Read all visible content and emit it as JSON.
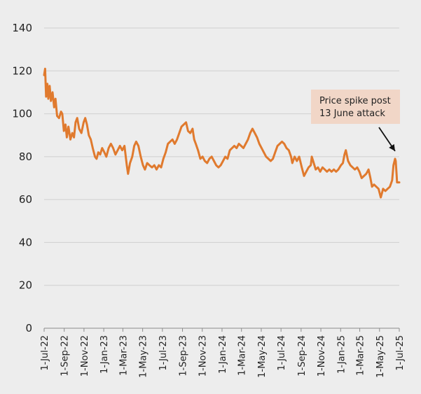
{
  "chart_data": {
    "type": "line",
    "title": "",
    "xlabel": "",
    "ylabel": "",
    "ylim": [
      0,
      140
    ],
    "y_ticks": [
      0,
      20,
      40,
      60,
      80,
      100,
      120,
      140
    ],
    "x_range": [
      "2022-07-01",
      "2025-07-01"
    ],
    "x_tick_labels": [
      "1-Jul-22",
      "1-Sep-22",
      "1-Nov-22",
      "1-Jan-23",
      "1-Mar-23",
      "1-May-23",
      "1-Jul-23",
      "1-Sep-23",
      "1-Nov-23",
      "1-Jan-24",
      "1-Mar-24",
      "1-May-24",
      "1-Jul-24",
      "1-Sep-24",
      "1-Nov-24",
      "1-Jan-25",
      "1-Mar-25",
      "1-May-25",
      "1-Jul-25"
    ],
    "x_tick_dates": [
      "2022-07-01",
      "2022-09-01",
      "2022-11-01",
      "2023-01-01",
      "2023-03-01",
      "2023-05-01",
      "2023-07-01",
      "2023-09-01",
      "2023-11-01",
      "2024-01-01",
      "2024-03-01",
      "2024-05-01",
      "2024-07-01",
      "2024-09-01",
      "2024-11-01",
      "2025-01-01",
      "2025-03-01",
      "2025-05-01",
      "2025-07-01"
    ],
    "grid": "horizontal",
    "line_color": "#e07a2e",
    "series": [
      {
        "name": "",
        "points": [
          [
            "2022-07-01",
            118
          ],
          [
            "2022-07-04",
            121
          ],
          [
            "2022-07-07",
            108
          ],
          [
            "2022-07-11",
            114
          ],
          [
            "2022-07-14",
            107
          ],
          [
            "2022-07-18",
            113
          ],
          [
            "2022-07-22",
            106
          ],
          [
            "2022-07-27",
            110
          ],
          [
            "2022-08-01",
            103
          ],
          [
            "2022-08-05",
            107
          ],
          [
            "2022-08-10",
            99
          ],
          [
            "2022-08-16",
            98
          ],
          [
            "2022-08-22",
            101
          ],
          [
            "2022-08-26",
            100
          ],
          [
            "2022-08-31",
            92
          ],
          [
            "2022-09-05",
            95
          ],
          [
            "2022-09-09",
            89
          ],
          [
            "2022-09-14",
            94
          ],
          [
            "2022-09-20",
            88
          ],
          [
            "2022-09-26",
            91
          ],
          [
            "2022-10-01",
            89
          ],
          [
            "2022-10-06",
            96
          ],
          [
            "2022-10-11",
            98
          ],
          [
            "2022-10-17",
            93
          ],
          [
            "2022-10-24",
            91
          ],
          [
            "2022-10-31",
            96
          ],
          [
            "2022-11-05",
            98
          ],
          [
            "2022-11-10",
            95
          ],
          [
            "2022-11-16",
            90
          ],
          [
            "2022-11-22",
            88
          ],
          [
            "2022-11-28",
            84
          ],
          [
            "2022-12-05",
            80
          ],
          [
            "2022-12-10",
            79
          ],
          [
            "2022-12-15",
            82
          ],
          [
            "2022-12-21",
            81
          ],
          [
            "2022-12-27",
            84
          ],
          [
            "2023-01-03",
            82
          ],
          [
            "2023-01-09",
            80
          ],
          [
            "2023-01-16",
            84
          ],
          [
            "2023-01-23",
            86
          ],
          [
            "2023-01-30",
            84
          ],
          [
            "2023-02-06",
            81
          ],
          [
            "2023-02-13",
            83
          ],
          [
            "2023-02-20",
            85
          ],
          [
            "2023-02-27",
            83
          ],
          [
            "2023-03-06",
            85
          ],
          [
            "2023-03-13",
            76
          ],
          [
            "2023-03-17",
            72
          ],
          [
            "2023-03-23",
            77
          ],
          [
            "2023-03-30",
            80
          ],
          [
            "2023-04-05",
            85
          ],
          [
            "2023-04-11",
            87
          ],
          [
            "2023-04-18",
            85
          ],
          [
            "2023-04-25",
            80
          ],
          [
            "2023-05-02",
            76
          ],
          [
            "2023-05-08",
            74
          ],
          [
            "2023-05-15",
            77
          ],
          [
            "2023-05-22",
            76
          ],
          [
            "2023-05-30",
            75
          ],
          [
            "2023-06-06",
            76
          ],
          [
            "2023-06-13",
            74
          ],
          [
            "2023-06-20",
            76
          ],
          [
            "2023-06-27",
            75
          ],
          [
            "2023-07-04",
            79
          ],
          [
            "2023-07-11",
            82
          ],
          [
            "2023-07-18",
            86
          ],
          [
            "2023-07-25",
            87
          ],
          [
            "2023-08-01",
            88
          ],
          [
            "2023-08-08",
            86
          ],
          [
            "2023-08-15",
            88
          ],
          [
            "2023-08-22",
            91
          ],
          [
            "2023-08-29",
            94
          ],
          [
            "2023-09-05",
            95
          ],
          [
            "2023-09-12",
            96
          ],
          [
            "2023-09-18",
            92
          ],
          [
            "2023-09-25",
            91
          ],
          [
            "2023-10-02",
            93
          ],
          [
            "2023-10-07",
            88
          ],
          [
            "2023-10-12",
            86
          ],
          [
            "2023-10-19",
            83
          ],
          [
            "2023-10-26",
            79
          ],
          [
            "2023-11-02",
            80
          ],
          [
            "2023-11-09",
            78
          ],
          [
            "2023-11-16",
            77
          ],
          [
            "2023-11-23",
            79
          ],
          [
            "2023-11-30",
            80
          ],
          [
            "2023-12-07",
            78
          ],
          [
            "2023-12-14",
            76
          ],
          [
            "2023-12-21",
            75
          ],
          [
            "2023-12-28",
            76
          ],
          [
            "2024-01-04",
            78
          ],
          [
            "2024-01-11",
            80
          ],
          [
            "2024-01-18",
            79
          ],
          [
            "2024-01-25",
            83
          ],
          [
            "2024-02-01",
            84
          ],
          [
            "2024-02-08",
            85
          ],
          [
            "2024-02-15",
            84
          ],
          [
            "2024-02-22",
            86
          ],
          [
            "2024-02-29",
            85
          ],
          [
            "2024-03-07",
            84
          ],
          [
            "2024-03-14",
            86
          ],
          [
            "2024-03-21",
            88
          ],
          [
            "2024-03-28",
            91
          ],
          [
            "2024-04-04",
            93
          ],
          [
            "2024-04-11",
            91
          ],
          [
            "2024-04-18",
            89
          ],
          [
            "2024-04-25",
            86
          ],
          [
            "2024-05-02",
            84
          ],
          [
            "2024-05-09",
            82
          ],
          [
            "2024-05-16",
            80
          ],
          [
            "2024-05-23",
            79
          ],
          [
            "2024-05-30",
            78
          ],
          [
            "2024-06-06",
            79
          ],
          [
            "2024-06-13",
            82
          ],
          [
            "2024-06-20",
            85
          ],
          [
            "2024-06-27",
            86
          ],
          [
            "2024-07-04",
            87
          ],
          [
            "2024-07-11",
            86
          ],
          [
            "2024-07-18",
            84
          ],
          [
            "2024-07-25",
            83
          ],
          [
            "2024-08-01",
            80
          ],
          [
            "2024-08-05",
            77
          ],
          [
            "2024-08-12",
            80
          ],
          [
            "2024-08-19",
            78
          ],
          [
            "2024-08-26",
            80
          ],
          [
            "2024-09-03",
            75
          ],
          [
            "2024-09-10",
            71
          ],
          [
            "2024-09-17",
            73
          ],
          [
            "2024-09-24",
            75
          ],
          [
            "2024-10-01",
            76
          ],
          [
            "2024-10-04",
            80
          ],
          [
            "2024-10-10",
            77
          ],
          [
            "2024-10-16",
            74
          ],
          [
            "2024-10-23",
            75
          ],
          [
            "2024-10-30",
            73
          ],
          [
            "2024-11-06",
            75
          ],
          [
            "2024-11-13",
            74
          ],
          [
            "2024-11-20",
            73
          ],
          [
            "2024-11-27",
            74
          ],
          [
            "2024-12-04",
            73
          ],
          [
            "2024-12-11",
            74
          ],
          [
            "2024-12-18",
            73
          ],
          [
            "2024-12-25",
            74
          ],
          [
            "2025-01-02",
            76
          ],
          [
            "2025-01-08",
            77
          ],
          [
            "2025-01-13",
            81
          ],
          [
            "2025-01-17",
            83
          ],
          [
            "2025-01-24",
            78
          ],
          [
            "2025-01-31",
            76
          ],
          [
            "2025-02-07",
            75
          ],
          [
            "2025-02-14",
            74
          ],
          [
            "2025-02-21",
            75
          ],
          [
            "2025-02-28",
            73
          ],
          [
            "2025-03-07",
            70
          ],
          [
            "2025-03-14",
            71
          ],
          [
            "2025-03-21",
            72
          ],
          [
            "2025-03-28",
            74
          ],
          [
            "2025-04-03",
            70
          ],
          [
            "2025-04-08",
            66
          ],
          [
            "2025-04-14",
            67
          ],
          [
            "2025-04-21",
            66
          ],
          [
            "2025-04-28",
            65
          ],
          [
            "2025-05-05",
            61
          ],
          [
            "2025-05-12",
            65
          ],
          [
            "2025-05-19",
            64
          ],
          [
            "2025-05-26",
            65
          ],
          [
            "2025-06-02",
            66
          ],
          [
            "2025-06-09",
            69
          ],
          [
            "2025-06-13",
            76
          ],
          [
            "2025-06-18",
            79
          ],
          [
            "2025-06-20",
            78
          ],
          [
            "2025-06-23",
            71
          ],
          [
            "2025-06-24",
            68
          ],
          [
            "2025-06-27",
            68
          ],
          [
            "2025-07-01",
            68
          ]
        ]
      }
    ],
    "annotations": [
      {
        "lines": [
          "Price spike post",
          "13 June attack"
        ],
        "box_color": "#f1d6c7",
        "arrow_to": [
          "2025-06-18",
          80
        ]
      }
    ]
  }
}
